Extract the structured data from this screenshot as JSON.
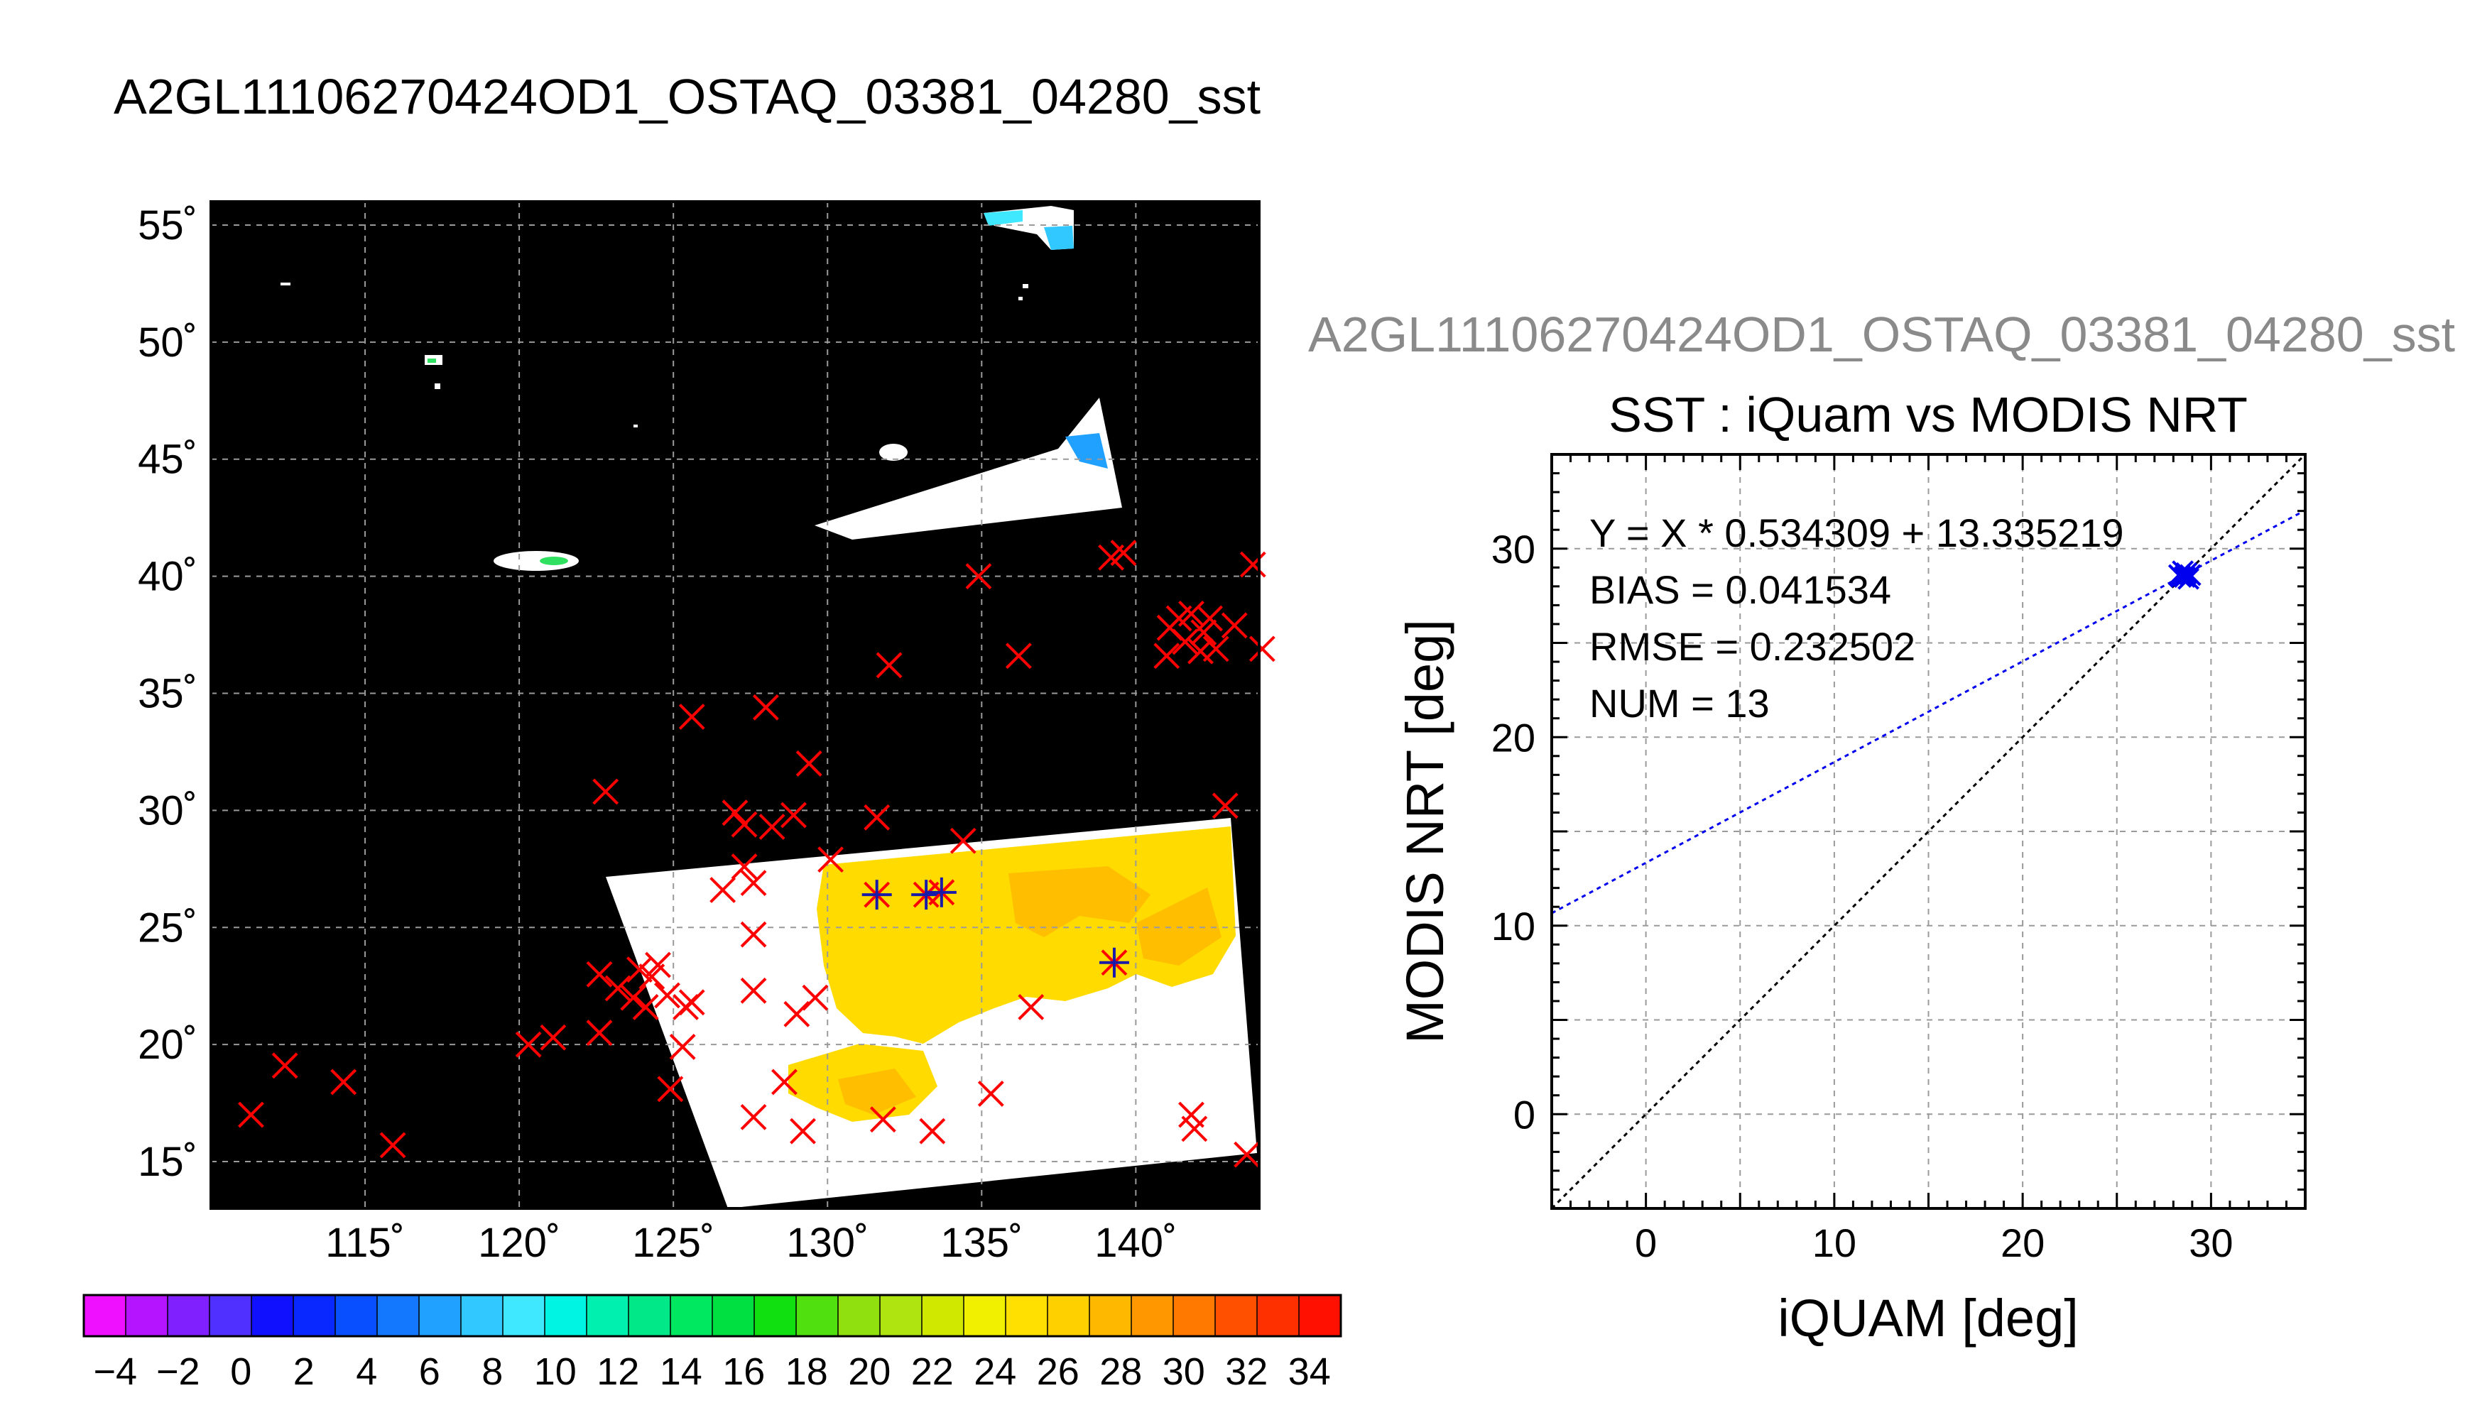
{
  "chart_data": [
    {
      "type": "scatter",
      "title": "A2GL11106270424OD1_OSTAQ_03381_04280_sst",
      "description_kind": "map",
      "xlim": [
        110,
        144
      ],
      "ylim": [
        13,
        56
      ],
      "x_ticks": [
        115,
        120,
        125,
        130,
        135,
        140
      ],
      "y_ticks": [
        15,
        20,
        25,
        30,
        35,
        40,
        45,
        50,
        55
      ],
      "x_tick_labels": [
        "115˚",
        "120˚",
        "125˚",
        "130˚",
        "135˚",
        "140˚"
      ],
      "y_tick_labels": [
        "15˚",
        "20˚",
        "25˚",
        "30˚",
        "35˚",
        "40˚",
        "45˚",
        "50˚",
        "55˚"
      ],
      "grid": true,
      "series": [
        {
          "marker": "x",
          "color": "#ff0000",
          "points": [
            [
              111.3,
              17.0
            ],
            [
              112.4,
              19.1
            ],
            [
              114.3,
              18.4
            ],
            [
              115.9,
              15.7
            ],
            [
              120.3,
              20.0
            ],
            [
              121.1,
              20.3
            ],
            [
              122.6,
              20.5
            ],
            [
              122.6,
              23.0
            ],
            [
              123.2,
              22.4
            ],
            [
              123.7,
              22.0
            ],
            [
              123.9,
              23.2
            ],
            [
              124.1,
              21.6
            ],
            [
              124.3,
              22.9
            ],
            [
              124.5,
              23.4
            ],
            [
              124.8,
              22.1
            ],
            [
              125.4,
              21.6
            ],
            [
              125.6,
              21.8
            ],
            [
              125.3,
              19.9
            ],
            [
              124.9,
              18.1
            ],
            [
              122.8,
              30.8
            ],
            [
              125.6,
              34.0
            ],
            [
              126.6,
              26.6
            ],
            [
              127.0,
              29.9
            ],
            [
              127.3,
              29.4
            ],
            [
              127.3,
              27.6
            ],
            [
              127.6,
              26.9
            ],
            [
              127.6,
              24.7
            ],
            [
              127.6,
              22.3
            ],
            [
              127.6,
              16.9
            ],
            [
              128.0,
              34.4
            ],
            [
              128.2,
              29.3
            ],
            [
              128.6,
              18.4
            ],
            [
              128.9,
              29.8
            ],
            [
              129.0,
              21.3
            ],
            [
              129.2,
              16.3
            ],
            [
              129.4,
              32.0
            ],
            [
              129.6,
              22.0
            ],
            [
              130.1,
              27.9
            ],
            [
              131.6,
              29.7
            ],
            [
              131.8,
              16.8
            ],
            [
              132.0,
              36.2
            ],
            [
              133.4,
              16.3
            ],
            [
              134.4,
              28.7
            ],
            [
              134.9,
              40.0
            ],
            [
              135.3,
              17.9
            ],
            [
              136.2,
              36.6
            ],
            [
              136.6,
              21.6
            ],
            [
              139.2,
              40.8
            ],
            [
              139.6,
              41.0
            ],
            [
              141.0,
              36.6
            ],
            [
              141.1,
              37.8
            ],
            [
              141.4,
              38.2
            ],
            [
              141.6,
              37.2
            ],
            [
              141.8,
              38.4
            ],
            [
              142.1,
              36.8
            ],
            [
              142.2,
              37.6
            ],
            [
              142.4,
              38.2
            ],
            [
              142.6,
              36.9
            ],
            [
              141.8,
              17.0
            ],
            [
              141.9,
              16.4
            ],
            [
              142.9,
              30.2
            ],
            [
              143.2,
              37.9
            ],
            [
              143.6,
              15.3
            ],
            [
              143.8,
              40.5
            ],
            [
              144.1,
              36.9
            ]
          ]
        },
        {
          "marker": "asterisk",
          "color": "#1a1aa8",
          "points": [
            [
              131.6,
              26.4
            ],
            [
              133.2,
              26.4
            ],
            [
              133.7,
              26.5
            ],
            [
              139.3,
              23.5
            ]
          ]
        }
      ]
    },
    {
      "type": "colorbar",
      "colors": [
        "#ee10ff",
        "#b414ff",
        "#8020ff",
        "#5030ff",
        "#1010ff",
        "#0828ff",
        "#0850ff",
        "#1478ff",
        "#20a0ff",
        "#30c8ff",
        "#40e8ff",
        "#00f4e4",
        "#00f0b0",
        "#00e888",
        "#00e860",
        "#00e040",
        "#10e010",
        "#50e010",
        "#90e010",
        "#b0e410",
        "#d0e800",
        "#f0f000",
        "#ffe000",
        "#ffd000",
        "#ffb800",
        "#ff9800",
        "#ff7800",
        "#ff5000",
        "#ff3000",
        "#ff1000"
      ],
      "tick_labels": [
        "−4",
        "−2",
        "0",
        "2",
        "4",
        "6",
        "8",
        "10",
        "12",
        "14",
        "16",
        "18",
        "20",
        "22",
        "24",
        "26",
        "28",
        "30",
        "32",
        "34"
      ]
    },
    {
      "type": "scatter",
      "overlay_title": "A2GL11106270424OD1_OSTAQ_03381_04280_sst",
      "title": "SST : iQuam vs MODIS NRT",
      "xlabel": "iQUAM [deg]",
      "ylabel": "MODIS NRT [deg]",
      "xlim": [
        -5,
        35
      ],
      "ylim": [
        -5,
        35
      ],
      "x_ticks": [
        0,
        10,
        20,
        30
      ],
      "y_ticks": [
        0,
        10,
        20,
        30
      ],
      "grid": true,
      "annotations": [
        "Y = X * 0.534309 + 13.335219",
        "BIAS = 0.041534",
        "RMSE = 0.232502",
        "NUM = 13"
      ],
      "fit": {
        "slope": 0.534309,
        "intercept": 13.335219,
        "color": "#0000ee"
      },
      "identity_line": {
        "color": "#000000"
      },
      "series": [
        {
          "marker": "x",
          "color": "#0000ee",
          "points": [
            [
              28.3,
              28.6
            ],
            [
              28.5,
              28.8
            ],
            [
              28.6,
              28.5
            ],
            [
              28.7,
              28.7
            ],
            [
              28.8,
              28.4
            ],
            [
              28.4,
              28.5
            ],
            [
              28.9,
              28.6
            ]
          ]
        }
      ]
    }
  ]
}
